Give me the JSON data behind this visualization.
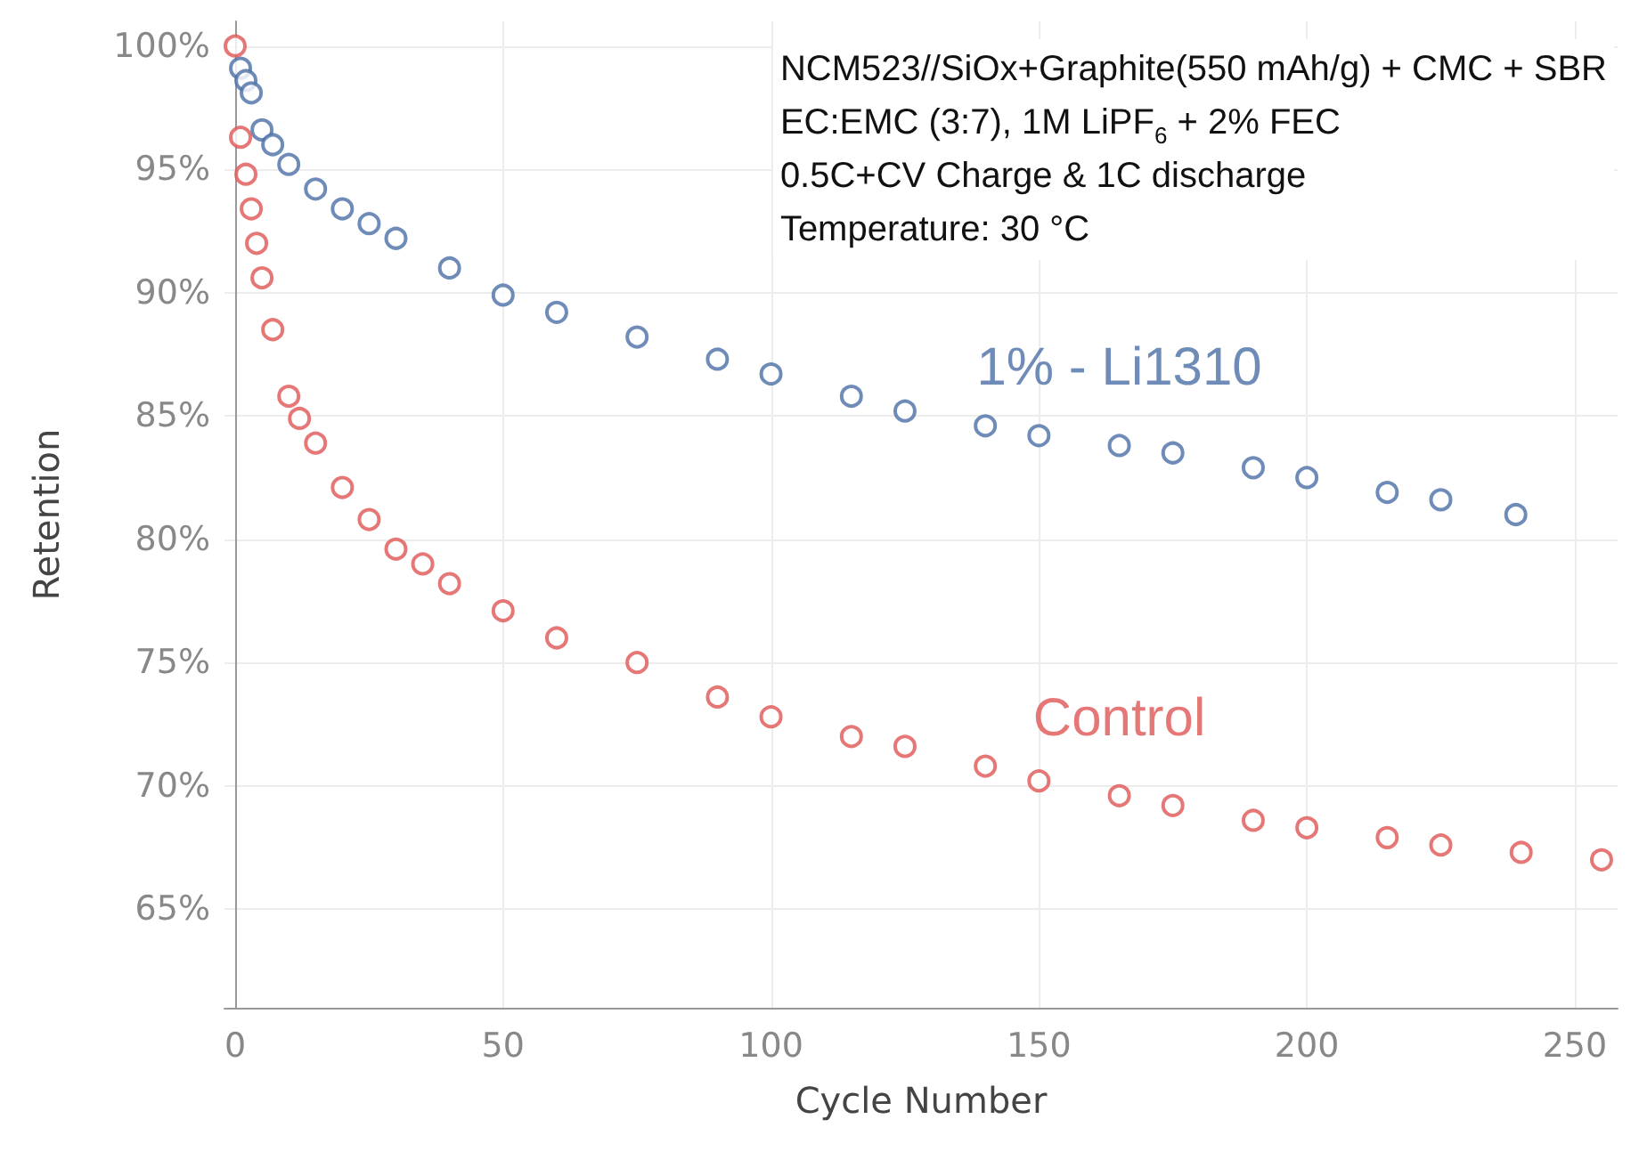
{
  "chart_data": {
    "type": "scatter",
    "xlabel": "Cycle Number",
    "ylabel": "Retention",
    "marker": "circle",
    "legend": false,
    "grid": true,
    "xlim": [
      -2,
      258
    ],
    "xticks": [
      0,
      50,
      100,
      150,
      200,
      250
    ],
    "ylim": [
      61,
      101
    ],
    "yticks": [
      {
        "value": 65,
        "label": "65%"
      },
      {
        "value": 70,
        "label": "70%"
      },
      {
        "value": 75,
        "label": "75%"
      },
      {
        "value": 80,
        "label": "80%"
      },
      {
        "value": 85,
        "label": "85%"
      },
      {
        "value": 90,
        "label": "90%"
      },
      {
        "value": 95,
        "label": "95%"
      },
      {
        "value": 100,
        "label": "100%"
      }
    ],
    "series": [
      {
        "name": "1% - Li1310",
        "color": "#4a6fa5",
        "x": [
          1,
          2,
          3,
          5,
          7,
          10,
          15,
          20,
          25,
          30,
          40,
          50,
          60,
          75,
          90,
          100,
          115,
          125,
          140,
          150,
          165,
          175,
          190,
          200,
          215,
          225,
          239
        ],
        "values": [
          99.1,
          98.6,
          98.1,
          96.6,
          96,
          95.2,
          94.2,
          93.4,
          92.8,
          92.2,
          91,
          89.9,
          89.2,
          88.2,
          87.3,
          86.7,
          85.8,
          85.2,
          84.6,
          84.2,
          83.8,
          83.5,
          82.9,
          82.5,
          81.9,
          81.6,
          81
        ]
      },
      {
        "name": "Control",
        "color": "#e05555",
        "x": [
          0,
          1,
          2,
          3,
          4,
          5,
          7,
          10,
          12,
          15,
          20,
          25,
          30,
          35,
          40,
          50,
          60,
          75,
          90,
          100,
          115,
          125,
          140,
          150,
          165,
          175,
          190,
          200,
          215,
          225,
          240,
          255
        ],
        "values": [
          100,
          96.3,
          94.8,
          93.4,
          92,
          90.6,
          88.5,
          85.8,
          84.9,
          83.9,
          82.1,
          80.8,
          79.6,
          79,
          78.2,
          77.1,
          76,
          75,
          73.6,
          72.8,
          72,
          71.6,
          70.8,
          70.2,
          69.6,
          69.2,
          68.6,
          68.3,
          67.9,
          67.6,
          67.3,
          67
        ]
      }
    ],
    "annotations": [
      "NCM523//SiOx+Graphite(550 mAh/g) + CMC + SBR",
      "EC:EMC (3:7), 1M LiPF$_{6}$ + 2% FEC",
      "0.5C+CV Charge & 1C discharge",
      "Temperature: 30 °C"
    ]
  }
}
